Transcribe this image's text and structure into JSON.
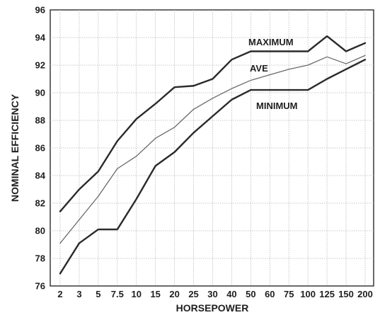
{
  "chart_data": {
    "type": "line",
    "title": "",
    "xlabel": "HORSEPOWER",
    "ylabel": "NOMINAL EFFICIENCY",
    "categories": [
      "2",
      "3",
      "5",
      "7.5",
      "10",
      "15",
      "20",
      "25",
      "30",
      "40",
      "50",
      "60",
      "75",
      "100",
      "125",
      "150",
      "200"
    ],
    "ylim": [
      76,
      96
    ],
    "yticks": [
      76,
      78,
      80,
      82,
      84,
      86,
      88,
      90,
      92,
      94,
      96
    ],
    "grid": true,
    "series": [
      {
        "name": "MAXIMUM",
        "color": "#2a2a2a",
        "values": [
          81.4,
          83.0,
          84.3,
          86.5,
          88.1,
          89.2,
          90.4,
          90.5,
          91.0,
          92.4,
          93.0,
          93.0,
          93.0,
          93.0,
          94.1,
          93.0,
          93.6
        ]
      },
      {
        "name": "AVE",
        "color": "#6a6a6a",
        "values": [
          79.1,
          80.8,
          82.5,
          84.5,
          85.4,
          86.7,
          87.5,
          88.8,
          89.6,
          90.3,
          90.9,
          91.3,
          91.7,
          92.0,
          92.6,
          92.1,
          92.7
        ]
      },
      {
        "name": "MINIMUM",
        "color": "#2a2a2a",
        "values": [
          76.9,
          79.1,
          80.1,
          80.1,
          82.3,
          84.7,
          85.7,
          87.1,
          88.3,
          89.5,
          90.2,
          90.2,
          90.2,
          90.2,
          91.0,
          91.7,
          92.4
        ]
      }
    ]
  }
}
